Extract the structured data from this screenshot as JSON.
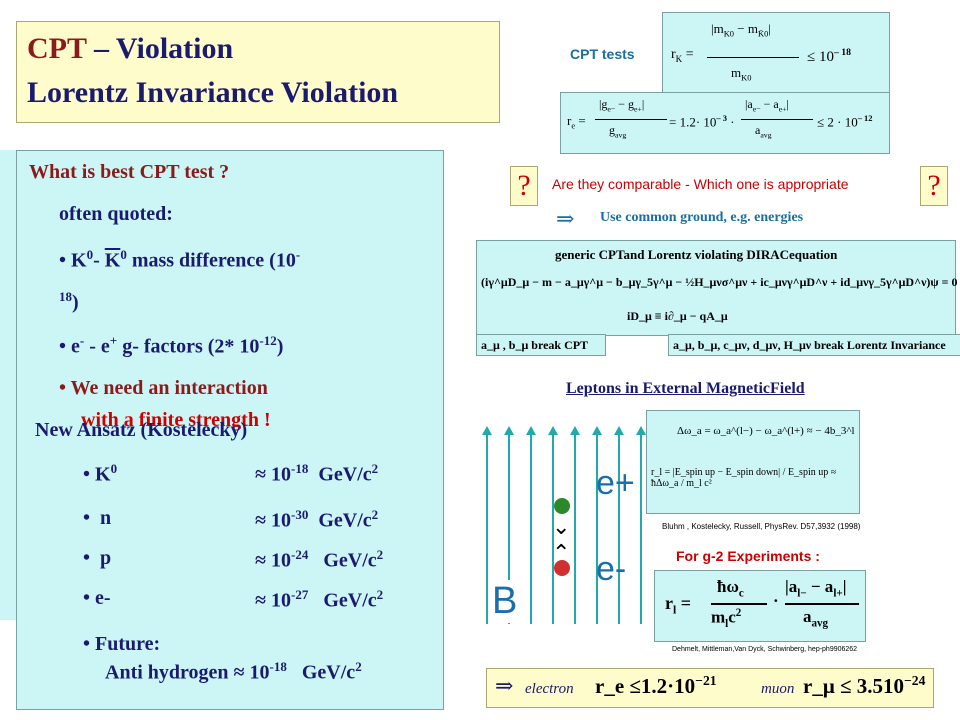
{
  "title": {
    "cpt": "CPT",
    "line1_rest": " – Violation",
    "line2": "Lorentz Invariance Violation"
  },
  "left_panel": {
    "question": "What is best CPT test ?",
    "often": "often  quoted:",
    "k_line": "K0- K0  mass difference  (10-18)",
    "k_line_a": "K",
    "k_line_b": "0",
    "k_line_c": "- ",
    "k_line_d": "K",
    "k_line_e": "0",
    "k_line_f": " mass difference  (10",
    "k_line_g": "-",
    "k_line_h": "18",
    "k_line_i": ")",
    "e_line_a": "e",
    "e_line_b": "-",
    "e_line_c": " - e",
    "e_line_d": "+",
    "e_line_e": "  g- factors (2* 10",
    "e_line_f": "-12",
    "e_line_g": ")",
    "interaction_1": "We need an interaction",
    "interaction_2": "with a finite strength !",
    "new_ansatz": "New Ansatz        (Kostelecky)",
    "items": [
      {
        "name": "K",
        "sup": "0",
        "exp": "-18",
        "unit": "GeV/c",
        "unit_sup": "2"
      },
      {
        "name": "n",
        "sup": "",
        "exp": "-30",
        "unit": "GeV/c",
        "unit_sup": "2"
      },
      {
        "name": "p",
        "sup": "",
        "exp": "-24",
        "unit": "GeV/c",
        "unit_sup": "2"
      },
      {
        "name": "e-",
        "sup": "",
        "exp": "-27",
        "unit": "GeV/c",
        "unit_sup": "2"
      }
    ],
    "approx": "≈ 10",
    "future": "Future:",
    "anti_h": "Anti hydrogen",
    "anti_exp": "-18",
    "anti_unit": "GeV/c",
    "anti_unit_sup": "2"
  },
  "right": {
    "cpt_tests": "CPT  tests",
    "rk_bound": "≤ 10",
    "rk_exp": "– 18",
    "re_value": "= 1.2· 10",
    "re_exp": "– 3",
    "re_bound": "≤ 2 · 10",
    "re_bound_exp": "– 12",
    "question_mark": "?",
    "comparable": "Are they comparable",
    "appropriate": "Which one is appropriate",
    "implies": "⇒",
    "common_ground": "Use common ground, e.g. energies",
    "dirac_title": "generic  CPTand  Lorentz violating  DIRACequation",
    "dirac_eq": "(iγ^μD_μ − m − a_μγ^μ − b_μγ_5γ^μ − ½H_μνσ^μν + ic_μνγ^μD^ν + id_μνγ_5γ^μD^ν)ψ = 0",
    "dirac_sub": "iD_μ ≡ i∂_μ − qA_μ",
    "break_cpt": "a_μ , b_μ  break  CPT",
    "break_lorentz": "a_μ, b_μ, c_μν, d_μν, H_μν  break  Lorentz Invariance",
    "leptons_title": "Leptons in External MagneticField",
    "delta_omega": "Δω_a = ω_a^(l−) − ω_a^(l+) ≈ − 4b_3^l",
    "r_l_formula": "r_l = |E_spin up − E_spin down| / E_spin up ≈ ħΔω_a / m_l c²",
    "bluhm_ref": "Bluhm , Kostelecky, Russell, PhysRev. D57,3932 (1998)",
    "g2_title": "For g-2 Experiments :",
    "dehmelt_ref": "Dehmelt, Mittleman,Van Dyck, Schwinberg, hep-ph9906262",
    "e_plus": "e+",
    "e_minus": "e-",
    "b_field": "B",
    "electron": "electron",
    "muon": "muon",
    "r_e_result": "r_e ≤1.2·10",
    "r_e_exp": "−21",
    "r_mu_result": "r_μ ≤ 3.510",
    "r_mu_exp": "−24"
  },
  "colors": {
    "navy": "#1a1a6e",
    "maroon": "#8b1a1a",
    "red": "#cc0000",
    "cyan_panel": "#ccf5f5",
    "cream_panel": "#fffccc",
    "field_lines": "#22aaaa"
  }
}
